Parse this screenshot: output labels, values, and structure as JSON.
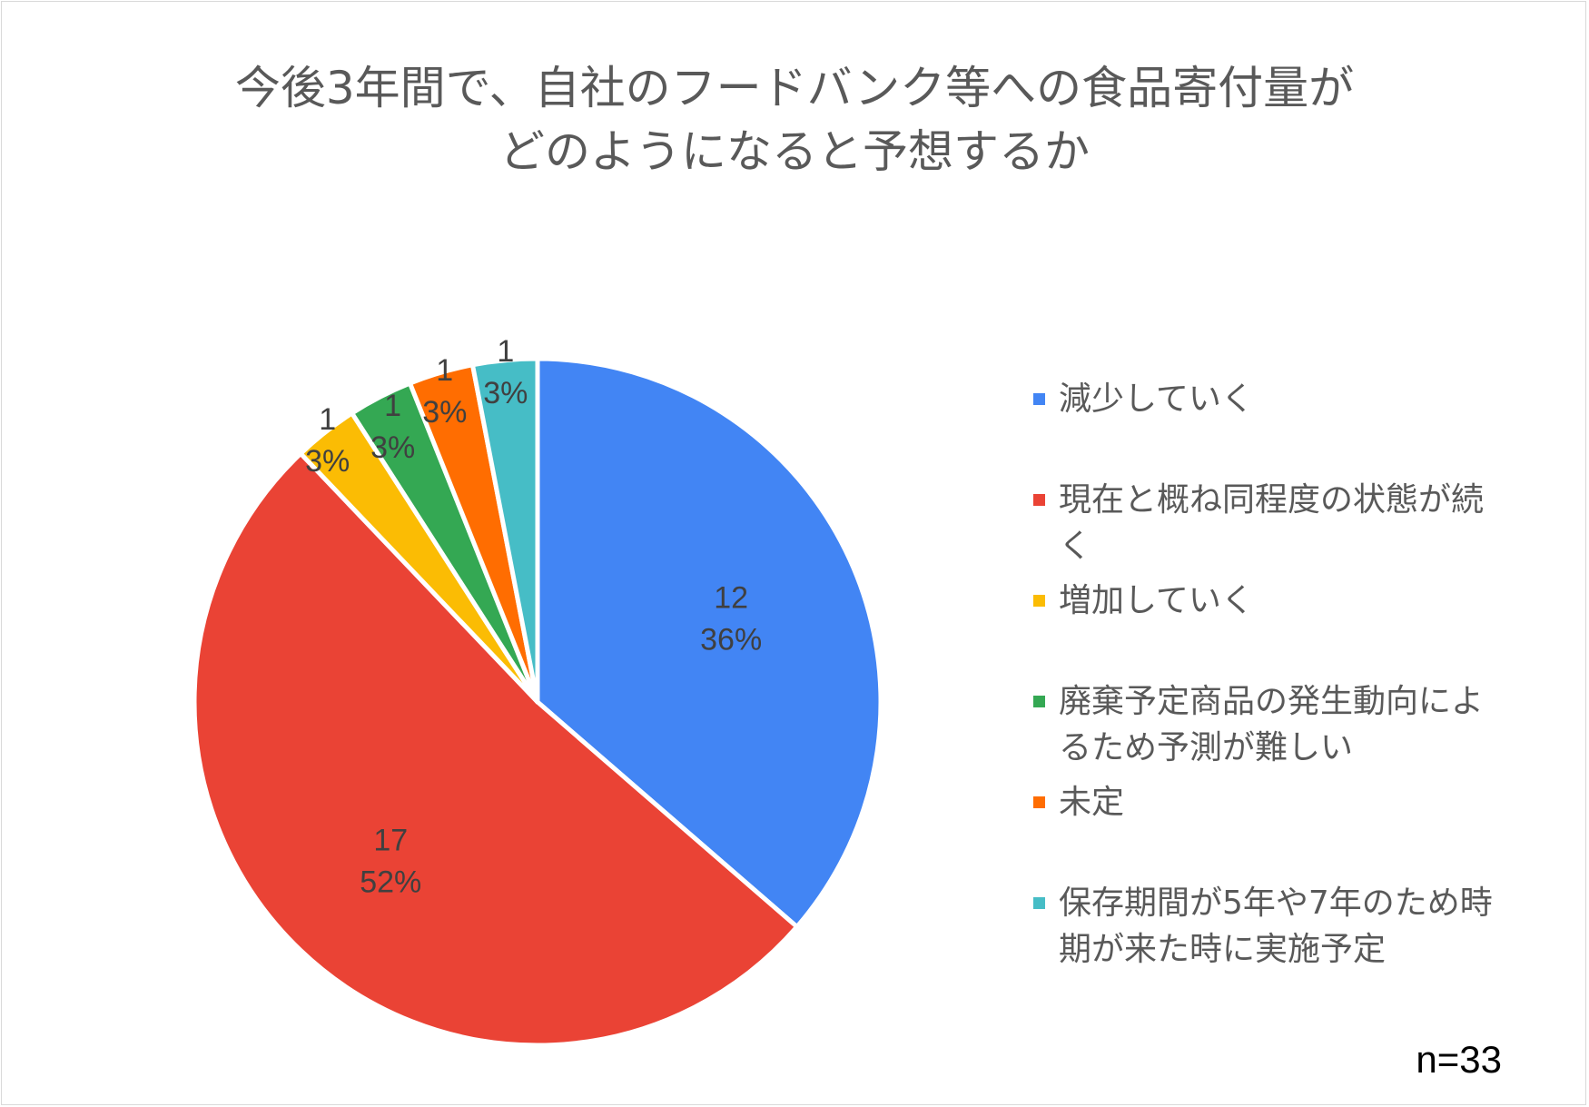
{
  "chart_data": {
    "type": "pie",
    "title_lines": [
      "今後3年間で、自社のフードバンク等への食品寄付量が",
      "どのようになると予想するか"
    ],
    "total": 33,
    "slices": [
      {
        "name": "減少していく",
        "value": 12,
        "percent": "36%",
        "color": "#4285F4"
      },
      {
        "name": "現在と概ね同程度の状態が続く",
        "value": 17,
        "percent": "52%",
        "color": "#EA4335"
      },
      {
        "name": "増加していく",
        "value": 1,
        "percent": "3%",
        "color": "#FBBC04"
      },
      {
        "name": "廃棄予定商品の発生動向によるため予測が難しい",
        "value": 1,
        "percent": "3%",
        "color": "#34A853"
      },
      {
        "name": "未定",
        "value": 1,
        "percent": "3%",
        "color": "#FF6D01"
      },
      {
        "name": "保存期間が5年や7年のため時期が来た時に実施予定",
        "value": 1,
        "percent": "3%",
        "color": "#46BDC6"
      }
    ],
    "legend_position": "right",
    "legend_lines": [
      [
        "減少していく"
      ],
      [
        "現在と概ね同程度の状態が続",
        "く"
      ],
      [
        "増加していく"
      ],
      [
        "廃棄予定商品の発生動向によ",
        "るため予測が難しい"
      ],
      [
        "未定"
      ],
      [
        "保存期間が5年や7年のため時",
        "期が来た時に実施予定"
      ]
    ],
    "note": "n=33"
  }
}
